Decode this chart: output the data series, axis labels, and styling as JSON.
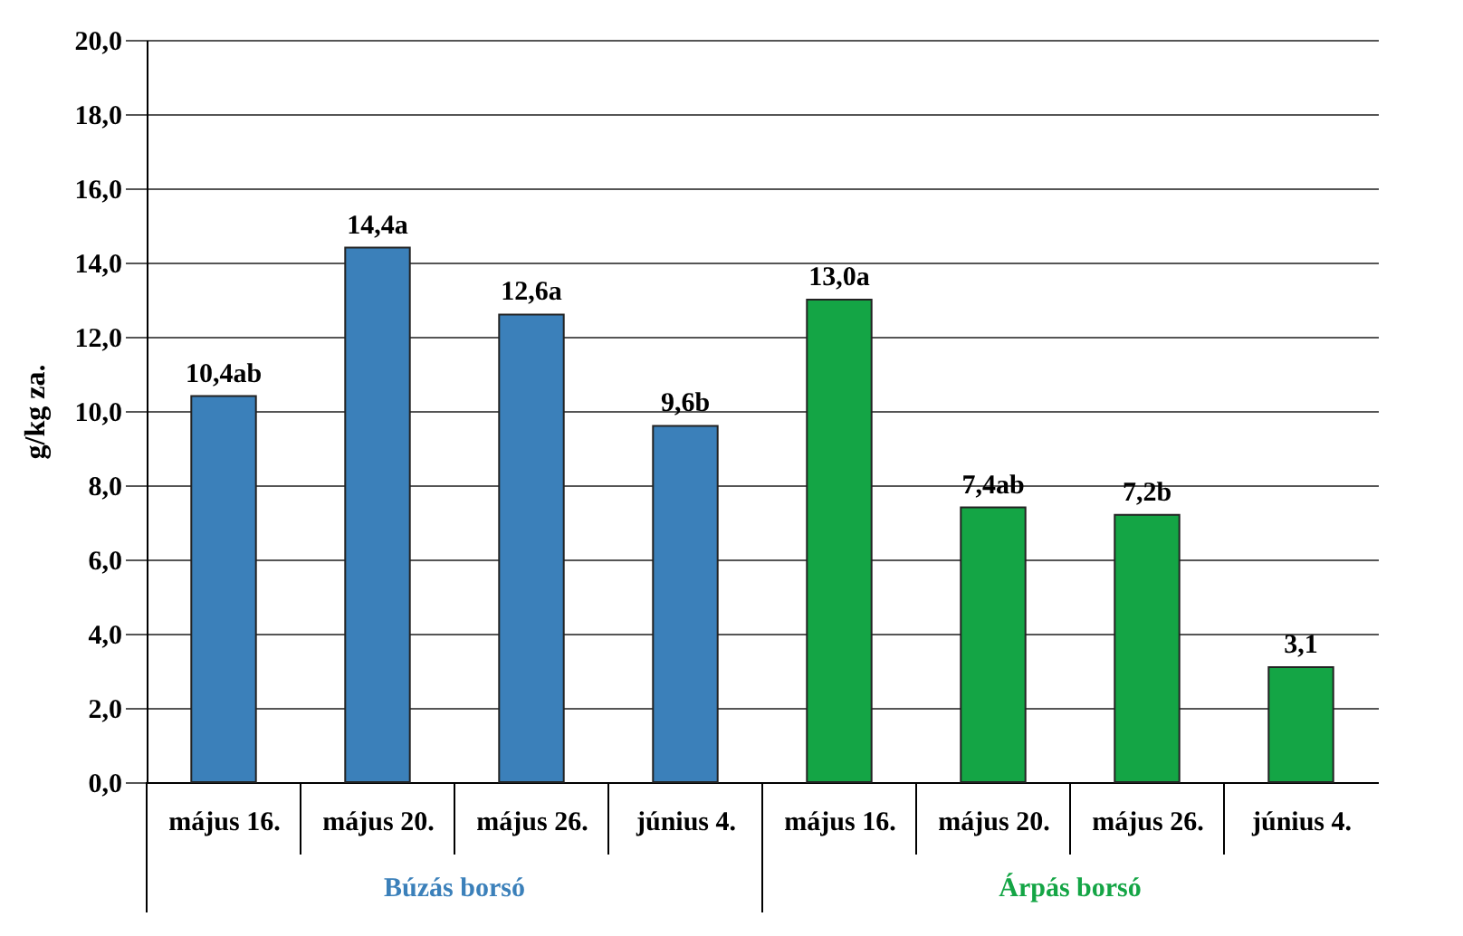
{
  "chart_data": {
    "type": "bar",
    "ylabel": "g/kg za.",
    "categories": [
      "május 16.",
      "május 20.",
      "május 26.",
      "június 4.",
      "május 16.",
      "május 20.",
      "május 26.",
      "június 4."
    ],
    "series": [
      {
        "name": "Búzás borsó",
        "color": "#3b80ba",
        "values": [
          10.4,
          14.4,
          12.6,
          9.6,
          null,
          null,
          null,
          null
        ],
        "value_labels": [
          "10,4ab",
          "14,4a",
          "12,6a",
          "9,6b",
          null,
          null,
          null,
          null
        ]
      },
      {
        "name": "Árpás borsó",
        "color": "#14a545",
        "values": [
          null,
          null,
          null,
          null,
          13.0,
          7.4,
          7.2,
          3.1
        ],
        "value_labels": [
          null,
          null,
          null,
          null,
          "13,0a",
          "7,4ab",
          "7,2b",
          "3,1"
        ]
      }
    ],
    "ylim": [
      0,
      20
    ],
    "yticks": [
      {
        "value": 0,
        "label": "0,0"
      },
      {
        "value": 2,
        "label": "2,0"
      },
      {
        "value": 4,
        "label": "4,0"
      },
      {
        "value": 6,
        "label": "6,0"
      },
      {
        "value": 8,
        "label": "8,0"
      },
      {
        "value": 10,
        "label": "10,0"
      },
      {
        "value": 12,
        "label": "12,0"
      },
      {
        "value": 14,
        "label": "14,0"
      },
      {
        "value": 16,
        "label": "16,0"
      },
      {
        "value": 18,
        "label": "18,0"
      },
      {
        "value": 20,
        "label": "20,0"
      }
    ],
    "grid": "y"
  }
}
